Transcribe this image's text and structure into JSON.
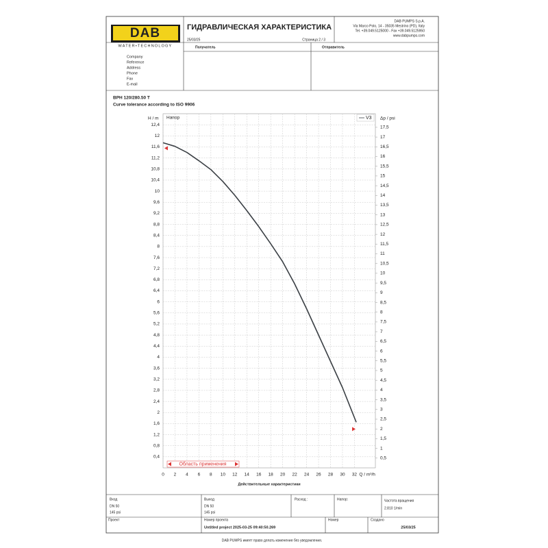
{
  "header": {
    "logo": "DAB",
    "tagline": "WATER•TECHNOLOGY",
    "title": "ГИДРАВЛИЧЕСКАЯ ХАРАКТЕРИСТИКА",
    "date": "25/03/25",
    "page": "Страница 2 / 3",
    "company": [
      "DAB PUMPS S.p.A.",
      "Via Marco Polo, 14 - 35035 Mestrino (PD), Italy",
      "Tel. +39.049.5125000 - Fax +39.049.5125950",
      "www.dabpumps.com"
    ],
    "recipient": "Получатель",
    "sender": "Отправитель",
    "fields": [
      "Company",
      "Reference",
      "Address",
      "Phone",
      "Fax",
      "E-mail"
    ]
  },
  "model": "BPH 120/280.50 T",
  "tolerance": "Curve tolerance according to ISO 9906",
  "chart_data": {
    "type": "line",
    "panel_label": "Напор",
    "ylabel": "H / m",
    "y2label": "Δp / psi",
    "xlabel": "Q / m³/h",
    "caption": "Действительные характеристики",
    "annotation": "Область применения",
    "x": [
      0,
      2,
      4,
      6,
      8,
      10,
      12,
      14,
      16,
      18,
      20,
      22,
      24,
      26,
      28,
      30,
      32.3
    ],
    "series": [
      {
        "name": "V3",
        "color": "#3a3f44",
        "values": [
          11.75,
          11.62,
          11.4,
          11.1,
          10.78,
          10.35,
          9.85,
          9.3,
          8.72,
          8.1,
          7.45,
          6.65,
          5.75,
          4.8,
          3.85,
          2.9,
          1.65
        ]
      }
    ],
    "xlim": [
      0,
      35.5
    ],
    "ylim": [
      0,
      12.8
    ],
    "y2lim": [
      0,
      18.2
    ],
    "xticks": [
      0,
      2,
      4,
      6,
      8,
      10,
      12,
      14,
      16,
      18,
      20,
      22,
      24,
      26,
      28,
      30,
      32
    ],
    "yticks": [
      {
        "value": 0.4,
        "label": "0,4"
      },
      {
        "value": 0.8,
        "label": "0,8"
      },
      {
        "value": 1.2,
        "label": "1,2"
      },
      {
        "value": 1.6,
        "label": "1,6"
      },
      2,
      {
        "value": 2.4,
        "label": "2,4"
      },
      {
        "value": 2.8,
        "label": "2,8"
      },
      {
        "value": 3.2,
        "label": "3,2"
      },
      {
        "value": 3.6,
        "label": "3,6"
      },
      4,
      {
        "value": 4.4,
        "label": "4,4"
      },
      {
        "value": 4.8,
        "label": "4,8"
      },
      {
        "value": 5.2,
        "label": "5,2"
      },
      {
        "value": 5.6,
        "label": "5,6"
      },
      6,
      {
        "value": 6.4,
        "label": "6,4"
      },
      {
        "value": 6.8,
        "label": "6,8"
      },
      {
        "value": 7.2,
        "label": "7,2"
      },
      {
        "value": 7.6,
        "label": "7,6"
      },
      8,
      {
        "value": 8.4,
        "label": "8,4"
      },
      {
        "value": 8.8,
        "label": "8,8"
      },
      {
        "value": 9.2,
        "label": "9,2"
      },
      {
        "value": 9.6,
        "label": "9,6"
      },
      10,
      {
        "value": 10.4,
        "label": "10,4"
      },
      {
        "value": 10.8,
        "label": "10,8"
      },
      {
        "value": 11.2,
        "label": "11,2"
      },
      {
        "value": 11.6,
        "label": "11,6"
      },
      12,
      {
        "value": 12.4,
        "label": "12,4"
      }
    ],
    "y2ticks": [
      {
        "value": 0.5,
        "label": "0,5"
      },
      1,
      {
        "value": 1.5,
        "label": "1,5"
      },
      2,
      {
        "value": 2.5,
        "label": "2,5"
      },
      3,
      {
        "value": 3.5,
        "label": "3,5"
      },
      4,
      {
        "value": 4.5,
        "label": "4,5"
      },
      5,
      {
        "value": 5.5,
        "label": "5,5"
      },
      6,
      {
        "value": 6.5,
        "label": "6,5"
      },
      7,
      {
        "value": 7.5,
        "label": "7,5"
      },
      8,
      {
        "value": 8.5,
        "label": "8,5"
      },
      9,
      {
        "value": 9.5,
        "label": "9,5"
      },
      10,
      {
        "value": 10.5,
        "label": "10,5"
      },
      11,
      {
        "value": 11.5,
        "label": "11,5"
      },
      12,
      {
        "value": 12.5,
        "label": "12,5"
      },
      13,
      {
        "value": 13.5,
        "label": "13,5"
      },
      14,
      {
        "value": 14.5,
        "label": "14,5"
      },
      15,
      {
        "value": 15.5,
        "label": "15,5"
      },
      16,
      {
        "value": 16.5,
        "label": "16,5"
      },
      17,
      {
        "value": 17.5,
        "label": "17,5"
      }
    ],
    "grid": true
  },
  "specs": {
    "inlet": {
      "label": "Вход",
      "size": "DN 50",
      "pressure": "145 psi"
    },
    "outlet": {
      "label": "Выход",
      "size": "DN 50",
      "pressure": "145 psi"
    },
    "flow": "Расход :",
    "head": "Напор:",
    "speed": {
      "label": "Частота вращения",
      "value": "2.810 1/min"
    }
  },
  "project": {
    "label": "Проект",
    "number_label": "Номер проекта",
    "number": "Untitled project 2025-03-25 09:40:50.269",
    "no_label": "Номер",
    "created_label": "Создано",
    "created": "25/03/25"
  },
  "footer": "DAB PUMPS имеет право делать изменения без уведомления."
}
